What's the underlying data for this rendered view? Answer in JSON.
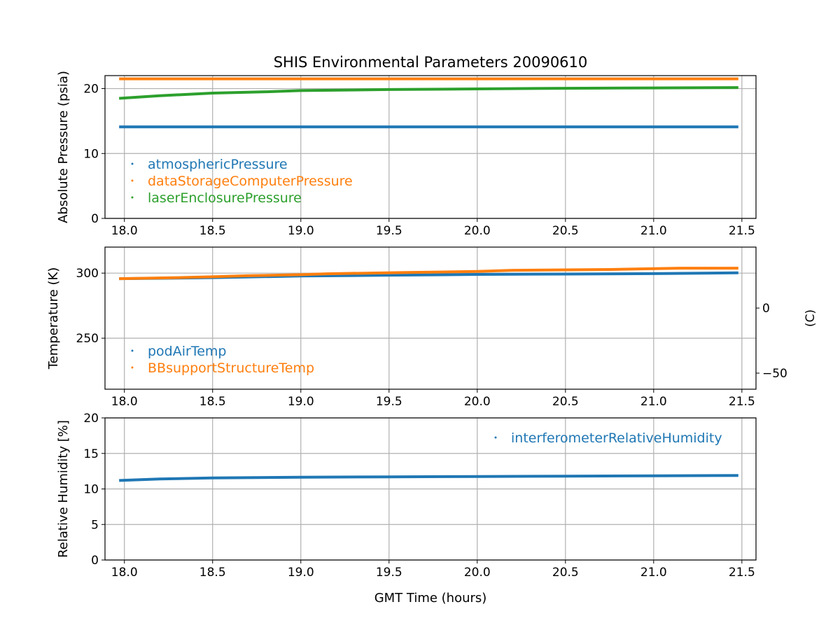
{
  "chart_data": [
    {
      "type": "line",
      "title": "SHIS Environmental Parameters 20090610",
      "xlabel": "",
      "ylabel": "Absolute Pressure (psia)",
      "xlim": [
        17.89,
        21.58
      ],
      "ylim": [
        0,
        22
      ],
      "xticks": [
        18.0,
        18.5,
        19.0,
        19.5,
        20.0,
        20.5,
        21.0,
        21.5
      ],
      "xtick_labels": [
        "18.0",
        "18.5",
        "19.0",
        "19.5",
        "20.0",
        "20.5",
        "21.0",
        "21.5"
      ],
      "yticks": [
        0,
        10,
        20
      ],
      "ytick_labels": [
        "0",
        "10",
        "20"
      ],
      "grid": true,
      "legend": "left",
      "series": [
        {
          "name": "atmosphericPressure",
          "color": "#1f77b4",
          "x": [
            17.97,
            21.48
          ],
          "y": [
            14.1,
            14.1
          ]
        },
        {
          "name": "dataStorageComputerPressure",
          "color": "#ff7f0e",
          "x": [
            17.97,
            21.48
          ],
          "y": [
            21.5,
            21.5
          ]
        },
        {
          "name": "laserEnclosurePressure",
          "color": "#2ca02c",
          "x": [
            17.97,
            18.2,
            18.5,
            18.8,
            19.0,
            19.5,
            20.0,
            20.5,
            21.0,
            21.48
          ],
          "y": [
            18.5,
            18.9,
            19.3,
            19.5,
            19.7,
            19.85,
            19.95,
            20.05,
            20.1,
            20.15
          ]
        }
      ]
    },
    {
      "type": "line",
      "title": "",
      "xlabel": "",
      "ylabel": "Temperature (K)",
      "y2label": "(C)",
      "xlim": [
        17.89,
        21.58
      ],
      "ylim": [
        210.8,
        320
      ],
      "xticks": [
        18.0,
        18.5,
        19.0,
        19.5,
        20.0,
        20.5,
        21.0,
        21.5
      ],
      "xtick_labels": [
        "18.0",
        "18.5",
        "19.0",
        "19.5",
        "20.0",
        "20.5",
        "21.0",
        "21.5"
      ],
      "yticks": [
        250,
        300
      ],
      "ytick_labels": [
        "250",
        "300"
      ],
      "y2ticks": [
        0,
        -50
      ],
      "y2tick_labels": [
        "0",
        "−50"
      ],
      "grid": true,
      "legend": "lower-left",
      "series": [
        {
          "name": "podAirTemp",
          "color": "#1f77b4",
          "x": [
            17.97,
            18.5,
            19.0,
            19.5,
            20.0,
            20.5,
            21.0,
            21.48
          ],
          "y": [
            295.7,
            296.5,
            297.8,
            298.4,
            299.0,
            299.3,
            299.6,
            300.2
          ]
        },
        {
          "name": "BBsupportStructureTemp",
          "color": "#ff7f0e",
          "x": [
            17.97,
            18.3,
            18.5,
            18.7,
            19.0,
            19.15,
            19.6,
            20.0,
            20.2,
            20.75,
            21.15,
            21.48
          ],
          "y": [
            295.7,
            296.5,
            297.2,
            298.0,
            298.8,
            299.5,
            300.5,
            301.3,
            302.2,
            302.8,
            303.8,
            303.8
          ]
        }
      ]
    },
    {
      "type": "line",
      "title": "",
      "xlabel": "GMT Time (hours)",
      "ylabel": "Relative Humidity [%]",
      "xlim": [
        17.89,
        21.58
      ],
      "ylim": [
        0,
        20
      ],
      "xticks": [
        18.0,
        18.5,
        19.0,
        19.5,
        20.0,
        20.5,
        21.0,
        21.5
      ],
      "xtick_labels": [
        "18.0",
        "18.5",
        "19.0",
        "19.5",
        "20.0",
        "20.5",
        "21.0",
        "21.5"
      ],
      "yticks": [
        0,
        5,
        10,
        15,
        20
      ],
      "ytick_labels": [
        "0",
        "5",
        "10",
        "15",
        "20"
      ],
      "grid": true,
      "legend": "upper-right",
      "series": [
        {
          "name": "interferometerRelativeHumidity",
          "color": "#1f77b4",
          "x": [
            17.97,
            18.2,
            18.5,
            19.0,
            19.5,
            20.0,
            20.5,
            21.0,
            21.48
          ],
          "y": [
            11.2,
            11.4,
            11.55,
            11.65,
            11.7,
            11.75,
            11.8,
            11.85,
            11.9
          ]
        }
      ]
    }
  ]
}
